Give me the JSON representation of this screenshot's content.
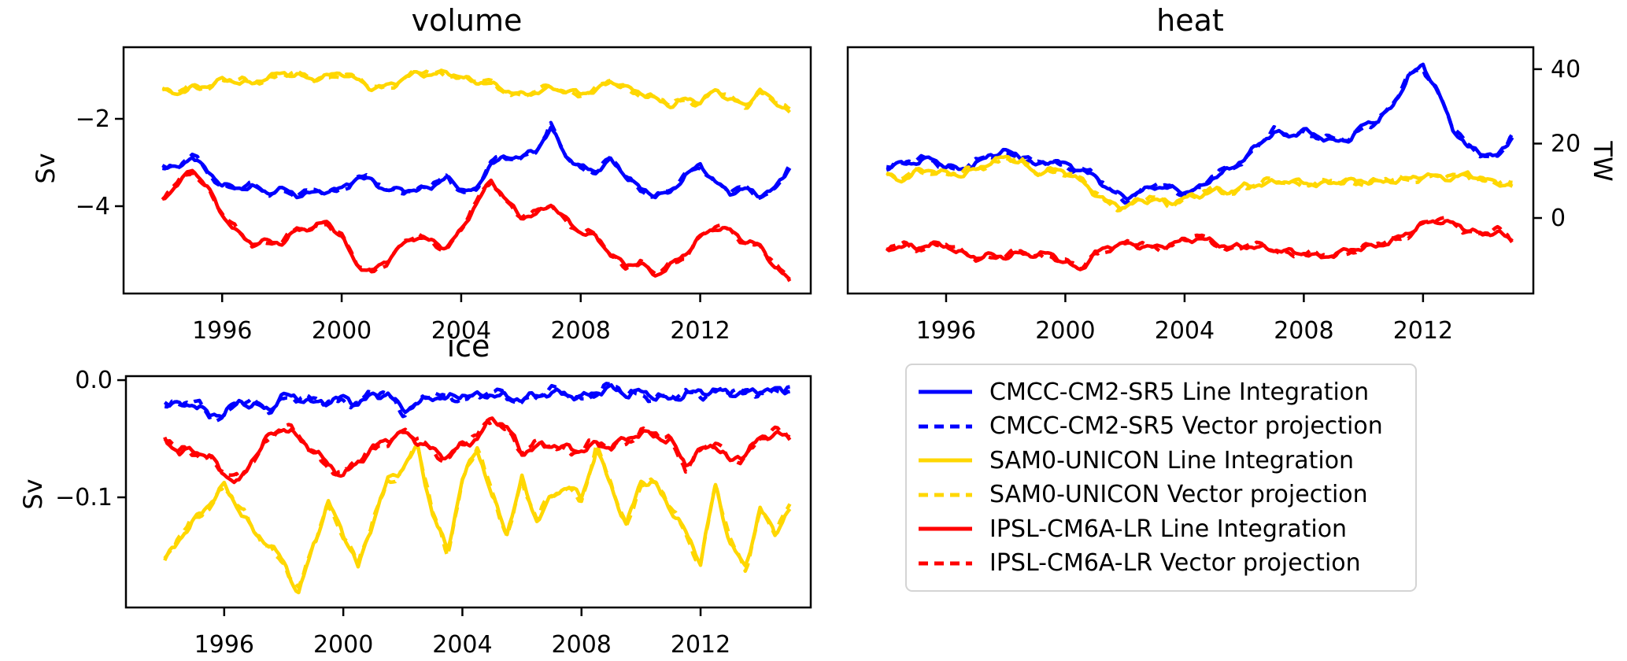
{
  "figure": {
    "background": "#ffffff"
  },
  "colors": {
    "cmcc": "#0000ff",
    "sam0": "#ffd700",
    "ipsl": "#ff0000",
    "axis": "#000000"
  },
  "chart_data": [
    {
      "type": "line",
      "title": "volume",
      "xlabel": "",
      "ylabel": "Sv",
      "ylabel_side": "left",
      "xlim": [
        1992.7,
        2015.7
      ],
      "ylim": [
        -6.0,
        -0.36
      ],
      "xticks": [
        1996,
        2000,
        2004,
        2008,
        2012
      ],
      "xtick_labels": [
        "1996",
        "2000",
        "2004",
        "2008",
        "2012"
      ],
      "yticks": [
        -2,
        -4
      ],
      "ytick_labels": [
        "−2",
        "−4"
      ],
      "ytick_side": "left",
      "grid": false,
      "x_start": 1994.0,
      "x_step": 0.5,
      "series": [
        {
          "name": "CMCC-CM2-SR5",
          "color": "#0000ff",
          "variants": [
            "Line Integration (solid)",
            "Vector projection (dashed)"
          ],
          "values": [
            -3.05,
            -3.15,
            -2.85,
            -3.2,
            -3.5,
            -3.6,
            -3.55,
            -3.7,
            -3.6,
            -3.75,
            -3.7,
            -3.65,
            -3.6,
            -3.35,
            -3.4,
            -3.65,
            -3.6,
            -3.65,
            -3.55,
            -3.35,
            -3.6,
            -3.65,
            -3.0,
            -2.9,
            -2.85,
            -2.75,
            -2.2,
            -2.85,
            -3.1,
            -3.2,
            -2.95,
            -3.3,
            -3.6,
            -3.75,
            -3.7,
            -3.3,
            -3.05,
            -3.45,
            -3.7,
            -3.6,
            -3.75,
            -3.6,
            -3.1
          ]
        },
        {
          "name": "SAM0-UNICON",
          "color": "#ffd700",
          "variants": [
            "Line Integration (solid)",
            "Vector projection (dashed)"
          ],
          "values": [
            -1.35,
            -1.42,
            -1.28,
            -1.25,
            -1.1,
            -1.15,
            -1.2,
            -1.05,
            -0.95,
            -1.0,
            -1.1,
            -1.02,
            -0.95,
            -1.1,
            -1.3,
            -1.25,
            -1.1,
            -0.95,
            -1.0,
            -0.92,
            -1.05,
            -1.15,
            -1.2,
            -1.35,
            -1.45,
            -1.4,
            -1.3,
            -1.35,
            -1.42,
            -1.35,
            -1.15,
            -1.28,
            -1.4,
            -1.55,
            -1.7,
            -1.55,
            -1.6,
            -1.35,
            -1.55,
            -1.7,
            -1.35,
            -1.6,
            -1.85
          ]
        },
        {
          "name": "IPSL-CM6A-LR",
          "color": "#ff0000",
          "variants": [
            "Line Integration (solid)",
            "Vector projection (dashed)"
          ],
          "values": [
            -3.85,
            -3.5,
            -3.15,
            -3.55,
            -4.2,
            -4.6,
            -4.85,
            -4.8,
            -4.85,
            -4.55,
            -4.5,
            -4.35,
            -4.7,
            -5.35,
            -5.5,
            -5.25,
            -4.9,
            -4.7,
            -4.8,
            -4.95,
            -4.55,
            -3.95,
            -3.4,
            -3.85,
            -4.25,
            -4.2,
            -3.95,
            -4.3,
            -4.6,
            -4.7,
            -5.1,
            -5.35,
            -5.3,
            -5.6,
            -5.35,
            -5.1,
            -4.7,
            -4.5,
            -4.55,
            -4.8,
            -4.9,
            -5.4,
            -5.7
          ]
        }
      ]
    },
    {
      "type": "line",
      "title": "heat",
      "xlabel": "",
      "ylabel": "TW",
      "ylabel_side": "right",
      "xlim": [
        1992.7,
        2015.7
      ],
      "ylim": [
        -20.3,
        45.9
      ],
      "xticks": [
        1996,
        2000,
        2004,
        2008,
        2012
      ],
      "xtick_labels": [
        "1996",
        "2000",
        "2004",
        "2008",
        "2012"
      ],
      "yticks": [
        40,
        20,
        0
      ],
      "ytick_labels": [
        "40",
        "20",
        "0"
      ],
      "ytick_side": "right",
      "grid": false,
      "x_start": 1994.0,
      "x_step": 0.5,
      "series": [
        {
          "name": "CMCC-CM2-SR5",
          "color": "#0000ff",
          "variants": [
            "Line Integration (solid)",
            "Vector projection (dashed)"
          ],
          "values": [
            14,
            14.5,
            15,
            16,
            14,
            13,
            14.5,
            17,
            18,
            16.5,
            14,
            15.5,
            14.5,
            13,
            11,
            7.5,
            5.5,
            7,
            8.5,
            8,
            7,
            8,
            11,
            13,
            16,
            20,
            23,
            22,
            23.5,
            22,
            20.5,
            21,
            25,
            26.5,
            30,
            38,
            41,
            34,
            24,
            19,
            17.5,
            16.5,
            22
          ]
        },
        {
          "name": "SAM0-UNICON",
          "color": "#ffd700",
          "variants": [
            "Line Integration (solid)",
            "Vector projection (dashed)"
          ],
          "values": [
            11.5,
            10,
            12.5,
            13,
            12,
            11.5,
            13,
            15,
            16.5,
            15,
            12,
            13,
            12.5,
            10,
            6.5,
            4,
            3,
            4.5,
            5,
            4,
            5.5,
            6,
            7.5,
            7,
            8.5,
            9,
            9.5,
            10,
            9.5,
            9,
            9.5,
            10,
            10,
            9.5,
            10,
            10.5,
            11.5,
            11,
            10.5,
            12,
            10.5,
            9.5,
            8.5
          ]
        },
        {
          "name": "IPSL-CM6A-LR",
          "color": "#ff0000",
          "variants": [
            "Line Integration (solid)",
            "Vector projection (dashed)"
          ],
          "values": [
            -8.5,
            -7.5,
            -8,
            -7,
            -7.5,
            -9.5,
            -10.5,
            -10,
            -10.5,
            -9.5,
            -10,
            -9.5,
            -12,
            -14,
            -9.5,
            -7.5,
            -7,
            -7.5,
            -8,
            -7,
            -6,
            -5.5,
            -6.5,
            -8,
            -7.5,
            -8,
            -8.5,
            -9,
            -9.5,
            -10.5,
            -10,
            -8.5,
            -8,
            -7.5,
            -6,
            -4,
            -1.5,
            -0.8,
            -1.5,
            -3,
            -4.5,
            -3.5,
            -6.5
          ]
        }
      ]
    },
    {
      "type": "line",
      "title": "ice",
      "xlabel": "",
      "ylabel": "Sv",
      "ylabel_side": "left",
      "xlim": [
        1992.7,
        2015.7
      ],
      "ylim": [
        -0.194,
        0.0034
      ],
      "xticks": [
        1996,
        2000,
        2004,
        2008,
        2012
      ],
      "xtick_labels": [
        "1996",
        "2000",
        "2004",
        "2008",
        "2012"
      ],
      "yticks": [
        0.0,
        -0.1
      ],
      "ytick_labels": [
        "0.0",
        "−0.1"
      ],
      "ytick_side": "left",
      "grid": false,
      "x_start": 1994.0,
      "x_step": 0.5,
      "series": [
        {
          "name": "CMCC-CM2-SR5",
          "color": "#0000ff",
          "variants": [
            "Line Integration (solid)",
            "Vector projection (dashed)"
          ],
          "values": [
            -0.018,
            -0.022,
            -0.02,
            -0.03,
            -0.028,
            -0.018,
            -0.022,
            -0.025,
            -0.013,
            -0.015,
            -0.02,
            -0.018,
            -0.015,
            -0.02,
            -0.013,
            -0.012,
            -0.025,
            -0.02,
            -0.014,
            -0.016,
            -0.012,
            -0.014,
            -0.012,
            -0.015,
            -0.016,
            -0.013,
            -0.011,
            -0.012,
            -0.015,
            -0.01,
            -0.007,
            -0.012,
            -0.01,
            -0.014,
            -0.017,
            -0.012,
            -0.01,
            -0.009,
            -0.011,
            -0.012,
            -0.008,
            -0.009,
            -0.008
          ]
        },
        {
          "name": "SAM0-UNICON",
          "color": "#ffd700",
          "variants": [
            "Line Integration (solid)",
            "Vector projection (dashed)"
          ],
          "values": [
            -0.155,
            -0.135,
            -0.12,
            -0.105,
            -0.09,
            -0.11,
            -0.13,
            -0.14,
            -0.155,
            -0.183,
            -0.14,
            -0.105,
            -0.13,
            -0.16,
            -0.12,
            -0.085,
            -0.075,
            -0.057,
            -0.115,
            -0.145,
            -0.085,
            -0.058,
            -0.1,
            -0.13,
            -0.085,
            -0.12,
            -0.1,
            -0.09,
            -0.1,
            -0.06,
            -0.09,
            -0.125,
            -0.085,
            -0.09,
            -0.11,
            -0.13,
            -0.155,
            -0.09,
            -0.14,
            -0.16,
            -0.11,
            -0.13,
            -0.11
          ]
        },
        {
          "name": "IPSL-CM6A-LR",
          "color": "#ff0000",
          "variants": [
            "Line Integration (solid)",
            "Vector projection (dashed)"
          ],
          "values": [
            -0.05,
            -0.062,
            -0.06,
            -0.065,
            -0.08,
            -0.088,
            -0.065,
            -0.048,
            -0.04,
            -0.05,
            -0.06,
            -0.072,
            -0.082,
            -0.07,
            -0.058,
            -0.05,
            -0.045,
            -0.052,
            -0.06,
            -0.065,
            -0.055,
            -0.05,
            -0.032,
            -0.04,
            -0.062,
            -0.057,
            -0.055,
            -0.058,
            -0.06,
            -0.055,
            -0.057,
            -0.05,
            -0.045,
            -0.048,
            -0.052,
            -0.072,
            -0.06,
            -0.055,
            -0.07,
            -0.062,
            -0.05,
            -0.045,
            -0.05
          ]
        }
      ]
    }
  ],
  "legend": {
    "position": "lower-right-quadrant",
    "entries": [
      {
        "label": "CMCC-CM2-SR5 Line Integration",
        "color": "#0000ff",
        "style": "solid"
      },
      {
        "label": "CMCC-CM2-SR5 Vector projection",
        "color": "#0000ff",
        "style": "dashed"
      },
      {
        "label": "SAM0-UNICON Line Integration",
        "color": "#ffd700",
        "style": "solid"
      },
      {
        "label": "SAM0-UNICON Vector projection",
        "color": "#ffd700",
        "style": "dashed"
      },
      {
        "label": "IPSL-CM6A-LR Line Integration",
        "color": "#ff0000",
        "style": "solid"
      },
      {
        "label": "IPSL-CM6A-LR Vector projection",
        "color": "#ff0000",
        "style": "dashed"
      }
    ]
  }
}
